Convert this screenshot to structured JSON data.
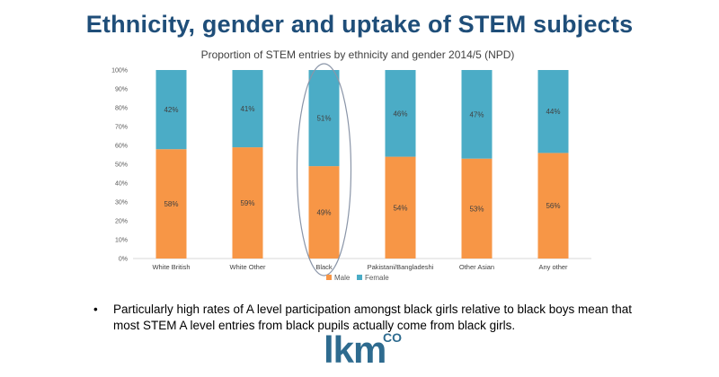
{
  "slide": {
    "title": "Ethnicity, gender and uptake of STEM subjects",
    "bullet": "Particularly high rates of A level participation amongst black girls relative to black boys mean that most STEM A level entries from black pupils actually come from black girls.",
    "bullet_symbol": "•",
    "logo_text": "lkm",
    "logo_superscript": "CO"
  },
  "colors": {
    "male": "#f79646",
    "female": "#4bacc6",
    "title": "#1f4e79",
    "axis": "#d9d9d9",
    "highlight_ellipse": "#8a95a8"
  },
  "chart_data": {
    "type": "bar",
    "stacked": true,
    "percent": true,
    "title": "Proportion of STEM entries by ethnicity and gender 2014/5 (NPD)",
    "categories": [
      "White British",
      "White Other",
      "Black",
      "Pakistani/Bangladeshi",
      "Other Asian",
      "Any other"
    ],
    "series": [
      {
        "name": "Male",
        "values": [
          58,
          59,
          49,
          54,
          53,
          56
        ],
        "labels": [
          "58%",
          "59%",
          "49%",
          "54%",
          "53%",
          "56%"
        ]
      },
      {
        "name": "Female",
        "values": [
          42,
          41,
          51,
          46,
          47,
          44
        ],
        "labels": [
          "42%",
          "41%",
          "51%",
          "46%",
          "47%",
          "44%"
        ]
      }
    ],
    "ylim": [
      0,
      100
    ],
    "yticks": [
      "0%",
      "10%",
      "20%",
      "30%",
      "40%",
      "50%",
      "60%",
      "70%",
      "80%",
      "90%",
      "100%"
    ],
    "grid": false,
    "legend_position": "bottom",
    "highlighted_category": "Black"
  }
}
